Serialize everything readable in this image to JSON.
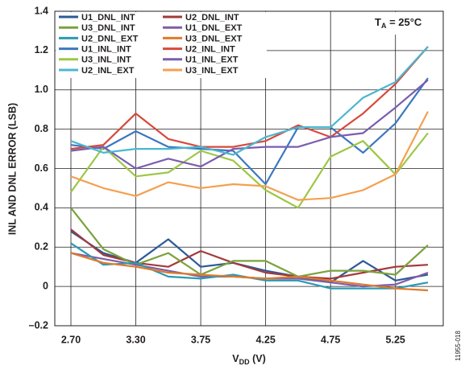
{
  "chart_data": {
    "type": "line",
    "annotation": {
      "main": "T",
      "sub": "A",
      "rest": " = 25°C"
    },
    "y_label": "INL AND DNL ERROR (LSB)",
    "x_label": {
      "main": "V",
      "sub": "DD",
      "rest": " (V)"
    },
    "figure_code": "11955-018",
    "categories": [
      "2.70",
      null,
      "3.30",
      null,
      "3.75",
      null,
      "4.25",
      null,
      "4.75",
      null,
      "5.25",
      null
    ],
    "ylim": [
      -0.2,
      1.4
    ],
    "yticks": [
      {
        "value": -0.2,
        "label": "–0.2"
      },
      0,
      0.2,
      0.4,
      0.6,
      0.8,
      {
        "value": 1,
        "label": "1.0"
      },
      1.2,
      1.4
    ],
    "grid": true,
    "legend": "top-left",
    "series": [
      {
        "name": "U1_DNL_INT",
        "color": "#2c5a96",
        "values": [
          0.28,
          0.17,
          0.12,
          0.24,
          0.1,
          0.12,
          0.08,
          0.05,
          0.02,
          0.13,
          0.03,
          0.06
        ]
      },
      {
        "name": "U2_DNL_INT",
        "color": "#a23a3a",
        "values": [
          0.29,
          0.16,
          0.12,
          0.1,
          0.18,
          0.12,
          0.07,
          0.05,
          0.04,
          0.07,
          0.1,
          0.11
        ]
      },
      {
        "name": "U3_DNL_INT",
        "color": "#7aa23c",
        "values": [
          0.4,
          0.19,
          0.11,
          0.17,
          0.06,
          0.13,
          0.13,
          0.05,
          0.08,
          0.08,
          0.06,
          0.21
        ]
      },
      {
        "name": "U1_DNL_EXT",
        "color": "#7e5ea6",
        "values": [
          0.17,
          0.14,
          0.11,
          0.08,
          0.05,
          0.05,
          0.04,
          0.04,
          0.02,
          0.0,
          0.01,
          0.07
        ]
      },
      {
        "name": "U2_DNL_EXT",
        "color": "#2a9ab3",
        "values": [
          0.22,
          0.11,
          0.12,
          0.05,
          0.04,
          0.06,
          0.03,
          0.03,
          -0.01,
          -0.01,
          -0.01,
          0.02
        ]
      },
      {
        "name": "U3_DNL_EXT",
        "color": "#de7a2c",
        "values": [
          0.17,
          0.12,
          0.1,
          0.07,
          0.06,
          0.05,
          0.04,
          0.05,
          0.03,
          0.01,
          -0.01,
          -0.02
        ]
      },
      {
        "name": "U1_INL_INT",
        "color": "#3b78bf",
        "values": [
          0.72,
          0.7,
          0.79,
          0.71,
          0.7,
          0.69,
          0.52,
          0.81,
          0.81,
          0.68,
          0.83,
          1.06
        ]
      },
      {
        "name": "U2_INL_INT",
        "color": "#d64a3b",
        "values": [
          0.7,
          0.72,
          0.88,
          0.75,
          0.71,
          0.71,
          0.74,
          0.82,
          0.76,
          0.88,
          1.03,
          1.22
        ]
      },
      {
        "name": "U3_INL_INT",
        "color": "#9dc746",
        "values": [
          0.48,
          0.71,
          0.56,
          0.58,
          0.69,
          0.64,
          0.49,
          0.4,
          0.66,
          0.74,
          0.57,
          0.78
        ]
      },
      {
        "name": "U1_INL_EXT",
        "color": "#7a5db0",
        "values": [
          0.69,
          0.71,
          0.6,
          0.65,
          0.61,
          0.7,
          0.71,
          0.71,
          0.76,
          0.78,
          0.91,
          1.05
        ]
      },
      {
        "name": "U2_INL_EXT",
        "color": "#4bb7cf",
        "values": [
          0.74,
          0.68,
          0.7,
          0.7,
          0.71,
          0.67,
          0.76,
          0.81,
          0.81,
          0.96,
          1.04,
          1.22
        ]
      },
      {
        "name": "U3_INL_EXT",
        "color": "#f4a04f",
        "values": [
          0.56,
          0.5,
          0.46,
          0.53,
          0.5,
          0.52,
          0.51,
          0.44,
          0.45,
          0.49,
          0.57,
          0.89
        ]
      }
    ]
  }
}
